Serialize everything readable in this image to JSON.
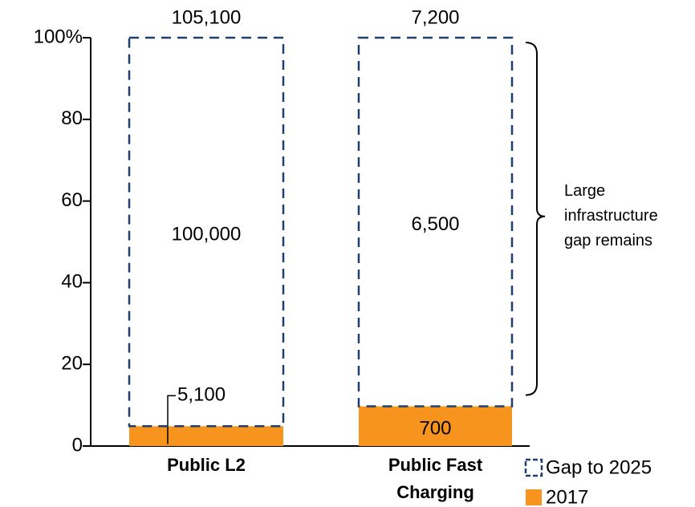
{
  "chart_data": {
    "type": "stacked_percent_bar",
    "categories": [
      [
        "Public L2"
      ],
      [
        "Public Fast",
        "Charging"
      ]
    ],
    "totals": [
      105100,
      7200
    ],
    "total_labels": [
      "105,100",
      "7,200"
    ],
    "series": [
      {
        "name": "2017",
        "color": "#f7941d",
        "style": "solid",
        "values": [
          5100,
          700
        ],
        "value_labels": [
          "5,100",
          "700"
        ],
        "label_placement": [
          "leader",
          "inside"
        ]
      },
      {
        "name": "Gap to 2025",
        "color": "#1f3f6e",
        "style": "dashed",
        "values": [
          100000,
          6500
        ],
        "value_labels": [
          "100,000",
          "6,500"
        ],
        "label_placement": [
          "inside",
          "inside"
        ]
      }
    ],
    "ylim": [
      0,
      100
    ],
    "yticks": [
      0,
      20,
      40,
      60,
      80,
      {
        "value": 100,
        "label": "100%"
      }
    ],
    "annotation": [
      "Large",
      "infrastructure",
      "gap remains"
    ],
    "legend": "bottom-right"
  }
}
